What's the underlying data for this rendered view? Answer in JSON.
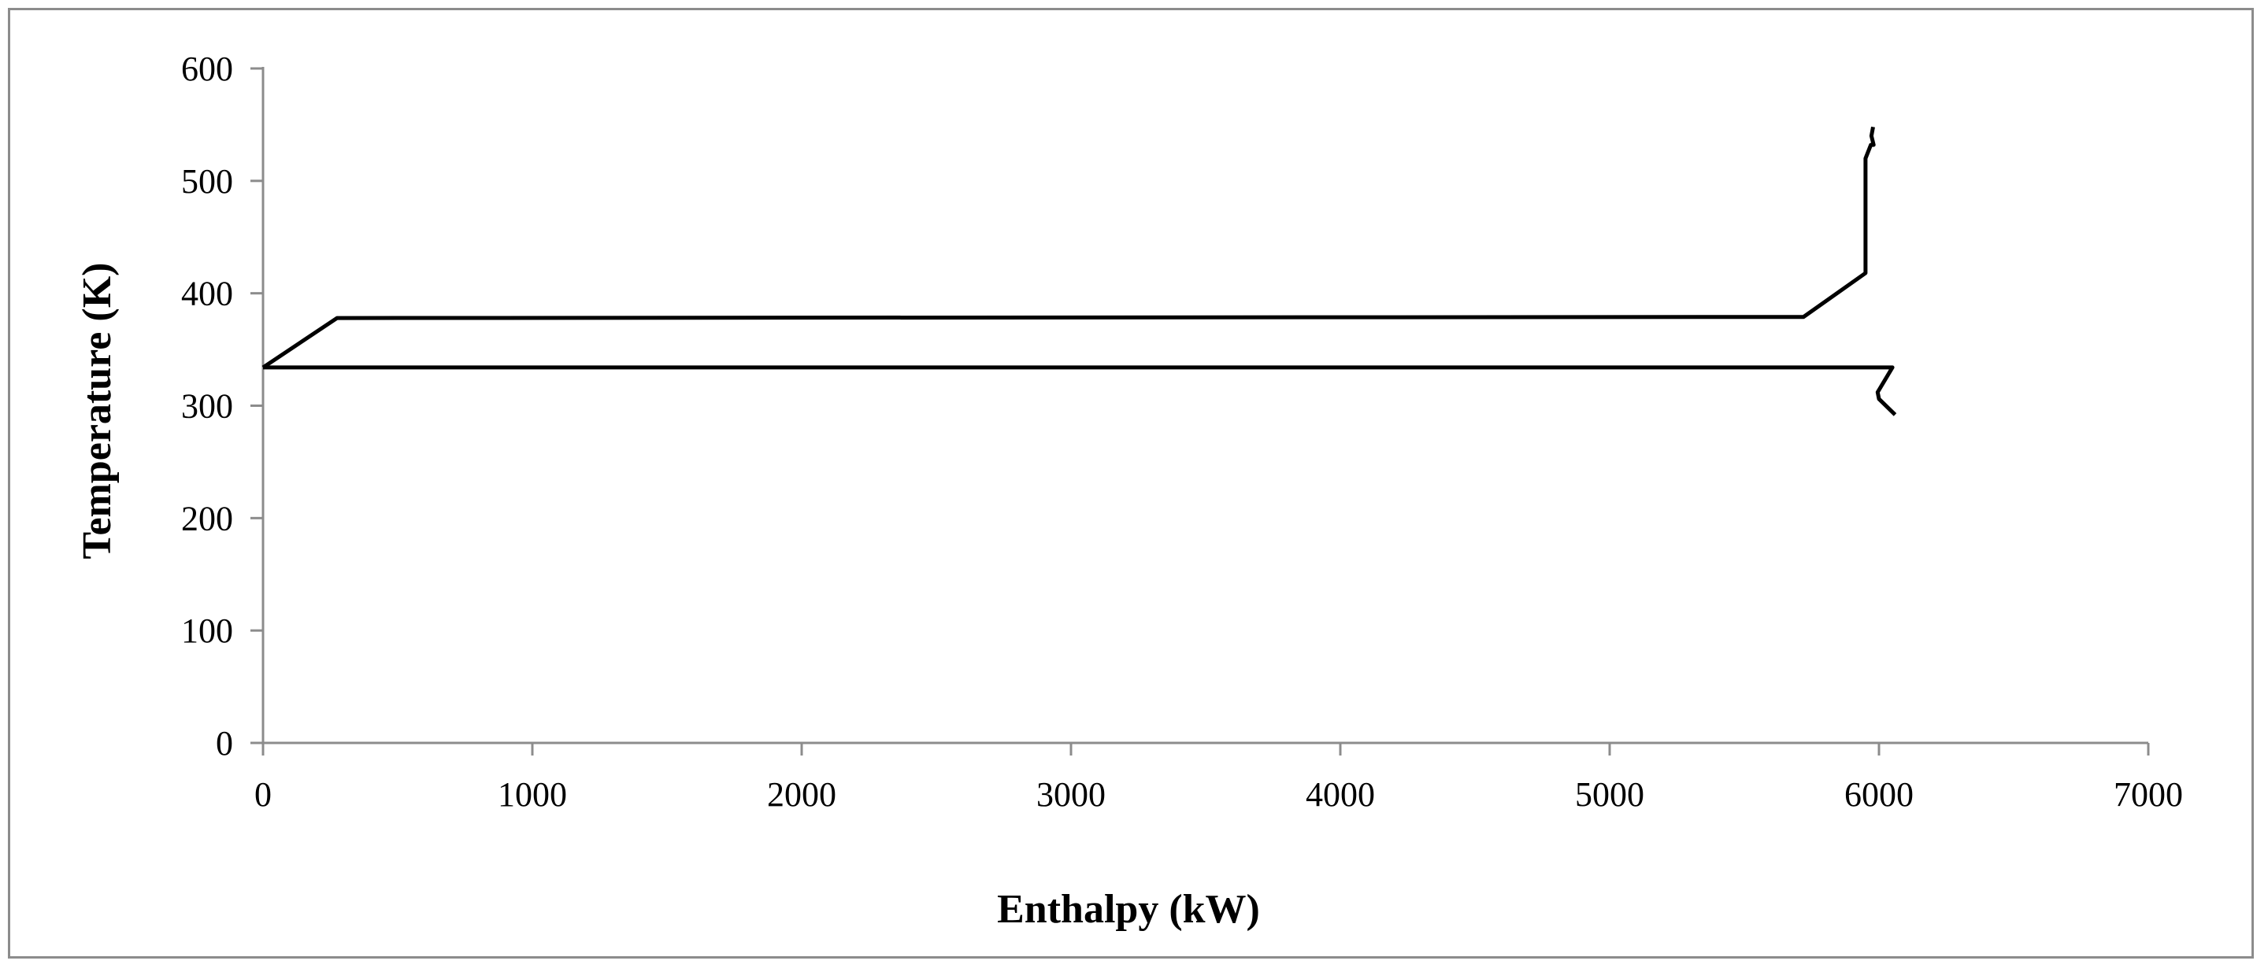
{
  "chart_data": {
    "type": "line",
    "xlabel": "Enthalpy (kW)",
    "ylabel": "Temperature (K)",
    "xlim": [
      0,
      7000
    ],
    "ylim": [
      0,
      600
    ],
    "xticks": [
      0,
      1000,
      2000,
      3000,
      4000,
      5000,
      6000,
      7000
    ],
    "yticks": [
      0,
      100,
      200,
      300,
      400,
      500,
      600
    ],
    "grid": false,
    "legend": "none",
    "series": [
      {
        "color": "#000000",
        "points": [
          [
            0,
            334
          ],
          [
            275,
            378
          ],
          [
            5720,
            379
          ],
          [
            5950,
            418
          ],
          [
            5950,
            520
          ],
          [
            5970,
            532
          ],
          [
            5980,
            532
          ],
          [
            5972,
            540
          ],
          [
            5978,
            548
          ]
        ]
      },
      {
        "color": "#000000",
        "points": [
          [
            0,
            334
          ],
          [
            6050,
            334
          ],
          [
            5995,
            312
          ],
          [
            6000,
            306
          ],
          [
            6060,
            292
          ]
        ]
      }
    ]
  }
}
